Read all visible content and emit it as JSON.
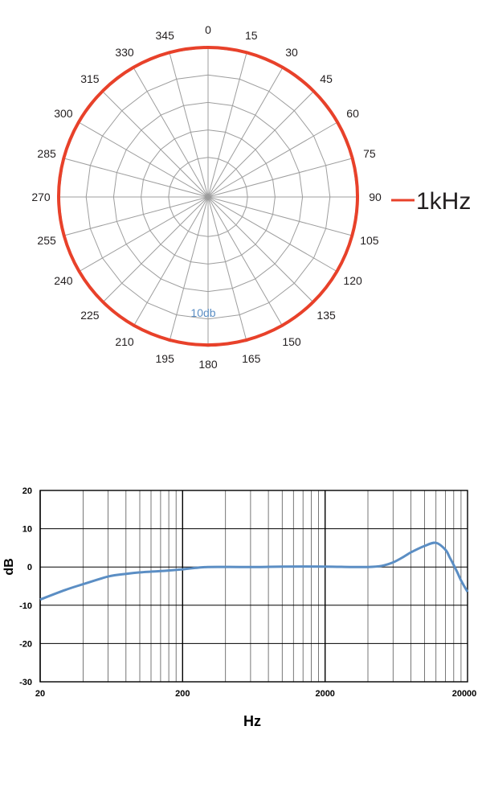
{
  "chart_data": [
    {
      "type": "polar",
      "angles": [
        0,
        15,
        30,
        45,
        60,
        75,
        90,
        105,
        120,
        135,
        150,
        165,
        180,
        195,
        210,
        225,
        240,
        255,
        270,
        285,
        300,
        315,
        330,
        345
      ],
      "angle_labels": [
        "0",
        "15",
        "30",
        "45",
        "60",
        "75",
        "90",
        "105",
        "120",
        "135",
        "150",
        "165",
        "180",
        "195",
        "210",
        "225",
        "240",
        "255",
        "270",
        "285",
        "300",
        "315",
        "330",
        "345"
      ],
      "ring_label": "10db",
      "rings": 5,
      "grid": true,
      "legend_position": "right",
      "series": [
        {
          "name": "1kHz",
          "color": "#e8412a",
          "values": [
            0,
            0,
            0,
            0,
            0,
            0,
            0,
            -0.1,
            -0.2,
            -0.3,
            -0.4,
            -0.5,
            -0.5,
            -0.5,
            -0.4,
            -0.3,
            -0.2,
            -0.1,
            0,
            0,
            0,
            0,
            0,
            0
          ]
        }
      ],
      "rmax_db": 0,
      "rmin_db": -50
    },
    {
      "type": "line",
      "xscale": "log",
      "xlim": [
        20,
        20000
      ],
      "ylim": [
        -30,
        20
      ],
      "xticks": [
        "20",
        "200",
        "2000",
        "20000"
      ],
      "yticks": [
        "20",
        "10",
        "0",
        "-10",
        "-20",
        "-30"
      ],
      "xlabel": "Hz",
      "ylabel": "dB",
      "grid": true,
      "series": [
        {
          "color": "#5b8ec4",
          "x": [
            20,
            30,
            40,
            60,
            80,
            100,
            150,
            200,
            250,
            300,
            500,
            700,
            1000,
            2000,
            3000,
            4000,
            5000,
            6000,
            7000,
            8000,
            10000,
            12000,
            14000,
            15000,
            16000,
            17000,
            18000,
            20000
          ],
          "y": [
            -8.5,
            -6,
            -4.5,
            -2.5,
            -1.8,
            -1.4,
            -1,
            -0.6,
            -0.2,
            0,
            0,
            0,
            0.1,
            0.1,
            0,
            0,
            0.3,
            1.2,
            2.5,
            3.8,
            5.5,
            6.3,
            4.5,
            2.5,
            0.5,
            -1.5,
            -3.5,
            -6.5
          ]
        }
      ]
    }
  ]
}
